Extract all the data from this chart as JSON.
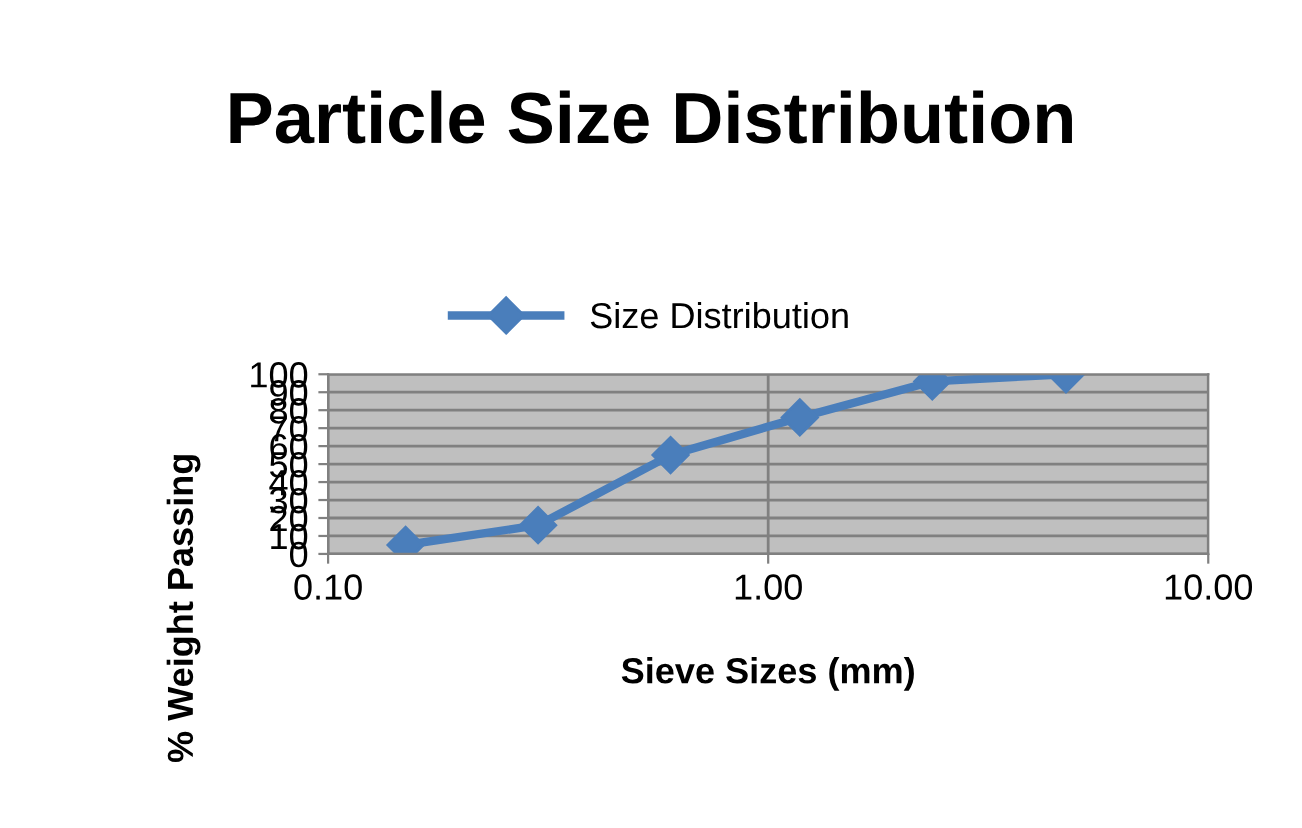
{
  "chart_data": {
    "type": "line",
    "title": "Particle Size Distribution",
    "xlabel": "Sieve Sizes (mm)",
    "ylabel": "% Weight Passing",
    "x": [
      0.15,
      0.3,
      0.6,
      1.18,
      2.36,
      4.75
    ],
    "series": [
      {
        "name": "Size Distribution",
        "color": "#4a7ebb",
        "values": [
          5,
          16,
          55,
          76,
          96,
          100
        ]
      }
    ],
    "log": "x",
    "xlim": [
      0.1,
      10
    ],
    "xticks": [
      {
        "value": 0.1,
        "label": "0.10"
      },
      {
        "value": 1,
        "label": "1.00"
      },
      {
        "value": 10,
        "label": "10.00"
      }
    ],
    "ylim": [
      0,
      100
    ],
    "yticks": [
      0,
      10,
      20,
      30,
      40,
      50,
      60,
      70,
      80,
      90,
      100
    ],
    "grid": true,
    "legend": "top",
    "marker": "diamond",
    "line_style": "solid"
  }
}
